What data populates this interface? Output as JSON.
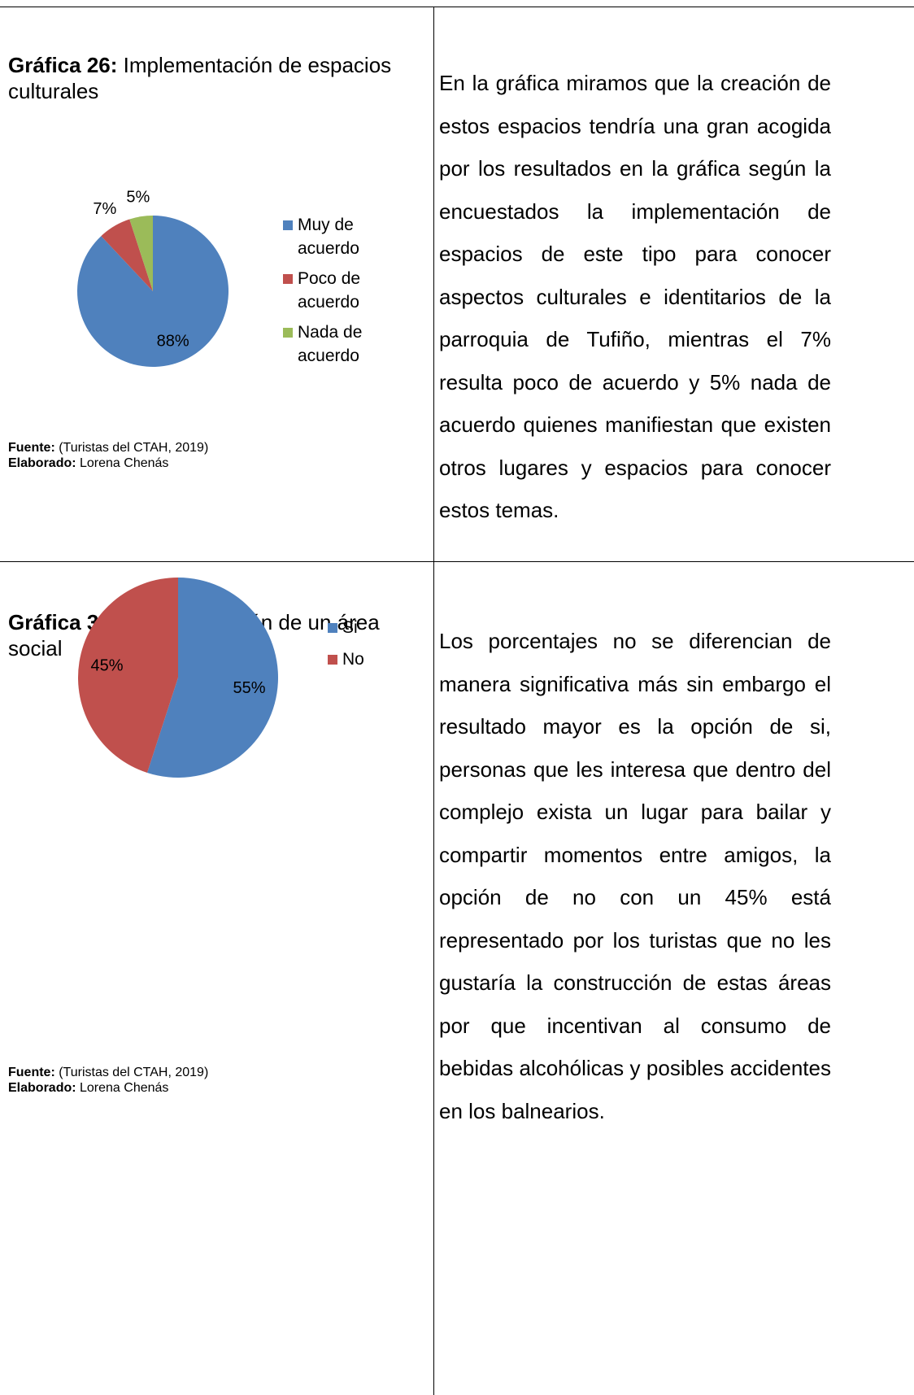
{
  "chart_data": [
    {
      "type": "pie",
      "categories": [
        "Muy de acuerdo",
        "Poco de acuerdo",
        "Nada de acuerdo"
      ],
      "values": [
        88,
        7,
        5
      ],
      "value_labels": [
        "88%",
        "7%",
        "5%"
      ],
      "colors": [
        "#4f81bd",
        "#c0504d",
        "#9bbb59"
      ]
    },
    {
      "type": "pie",
      "categories": [
        "Si",
        "No"
      ],
      "values": [
        55,
        45
      ],
      "value_labels": [
        "55%",
        "45%"
      ],
      "colors": [
        "#4f81bd",
        "#c0504d"
      ]
    }
  ],
  "rows": [
    {
      "caption": {
        "label": "Gráfica 26:",
        "text": " Implementación de espacios culturales"
      },
      "source": {
        "label": "Fuente:",
        "text": " (Turistas del CTAH, 2019)"
      },
      "author": {
        "label": "Elaborado:",
        "text": " Lorena Chenás"
      },
      "paragraph": "En la gráfica miramos que la creación de estos espacios tendría una gran acogida por los resultados en la gráfica según la encuestados la implementación de espacios de este tipo para conocer aspectos culturales e identitarios de la parroquia de Tufiño, mientras el 7% resulta poco de acuerdo y 5% nada de acuerdo quienes manifiestan que existen otros lugares y espacios para conocer estos temas."
    },
    {
      "caption": {
        "label": "Gráfica 31:",
        "text": " Implementación de un área social"
      },
      "source": {
        "label": "Fuente:",
        "text": " (Turistas del CTAH, 2019)"
      },
      "author": {
        "label": "Elaborado:",
        "text": " Lorena Chenás"
      },
      "paragraph": "Los porcentajes no se diferencian de manera significativa más sin embargo el resultado mayor es la opción de si, personas que les interesa que dentro del complejo exista un lugar para bailar y compartir momentos entre amigos, la opción de no con un 45% está representado por los turistas que no les gustaría la construcción de estas áreas por que incentivan al consumo de bebidas alcohólicas y posibles accidentes en los balnearios."
    }
  ]
}
